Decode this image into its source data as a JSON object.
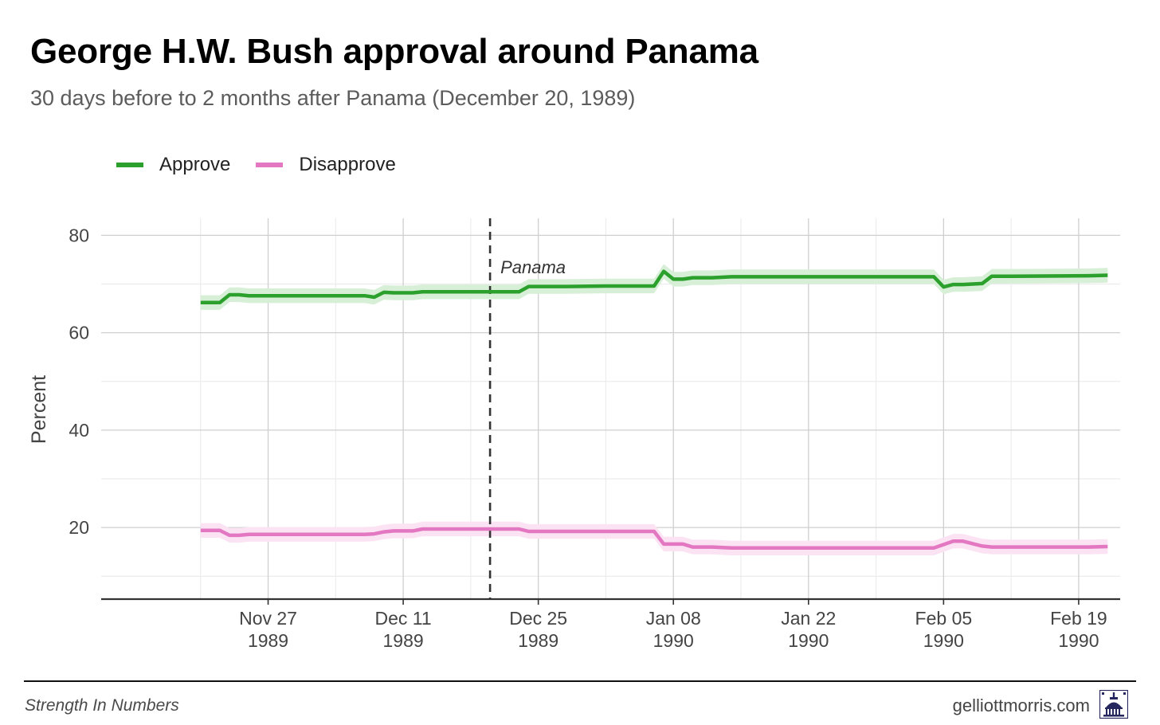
{
  "header": {
    "title": "George H.W. Bush approval around Panama",
    "subtitle": "30 days before to 2 months after Panama (December 20, 1989)"
  },
  "footer": {
    "source": "Strength In Numbers",
    "site": "gelliottmorris.com",
    "logo_icon": "capitol-dome-icon"
  },
  "colors": {
    "approve": "#2ca02c",
    "approve_band": "#d6efd6",
    "disapprove": "#e377c2",
    "disapprove_band": "#fbe3f3",
    "grid_major": "#cfcfcf",
    "grid_minor": "#ececec",
    "axis": "#333333",
    "event_line": "#333333"
  },
  "chart_data": {
    "type": "line",
    "title": "George H.W. Bush approval around Panama",
    "ylabel": "Percent",
    "xlabel": "",
    "ylim": [
      5.3,
      83.5
    ],
    "y_ticks": [
      20,
      40,
      60,
      80
    ],
    "y_minor_ticks": [
      10,
      30,
      50,
      70
    ],
    "x_range_days": [
      -40.3,
      65.3
    ],
    "x_ticks": [
      {
        "day": -23,
        "line1": "Nov 27",
        "line2": "1989"
      },
      {
        "day": -9,
        "line1": "Dec 11",
        "line2": "1989"
      },
      {
        "day": 5,
        "line1": "Dec 25",
        "line2": "1989"
      },
      {
        "day": 19,
        "line1": "Jan 08",
        "line2": "1990"
      },
      {
        "day": 33,
        "line1": "Jan 22",
        "line2": "1990"
      },
      {
        "day": 47,
        "line1": "Feb 05",
        "line2": "1990"
      },
      {
        "day": 61,
        "line1": "Feb 19",
        "line2": "1990"
      }
    ],
    "x_minor_ticks": [
      -30,
      -16,
      -2,
      12,
      26,
      40,
      54
    ],
    "x_units": "days relative to December 20, 1989",
    "event": {
      "day": 0,
      "label": "Panama"
    },
    "band_halfwidth": 1.5,
    "series": [
      {
        "name": "Approve",
        "color": "#2ca02c",
        "x": [
          -30,
          -28,
          -27,
          -26,
          -25,
          -13,
          -12,
          -11,
          -10,
          -8,
          -7,
          -6,
          -2,
          3,
          4,
          5,
          8,
          12,
          15,
          17,
          18,
          19,
          20,
          21,
          23,
          25,
          45,
          46,
          47,
          48,
          49,
          51,
          52,
          54,
          62,
          64
        ],
        "y": [
          66.2,
          66.2,
          67.8,
          67.8,
          67.6,
          67.6,
          67.3,
          68.3,
          68.2,
          68.2,
          68.4,
          68.4,
          68.4,
          68.4,
          69.5,
          69.5,
          69.5,
          69.6,
          69.6,
          69.6,
          72.6,
          71.0,
          71.0,
          71.3,
          71.3,
          71.5,
          71.5,
          71.5,
          69.4,
          69.9,
          69.9,
          70.1,
          71.6,
          71.6,
          71.7,
          71.8
        ]
      },
      {
        "name": "Disapprove",
        "color": "#e377c2",
        "x": [
          -30,
          -28,
          -27,
          -26,
          -25,
          -13,
          -12,
          -11,
          -10,
          -8,
          -7,
          -6,
          -2,
          3,
          4,
          5,
          8,
          12,
          15,
          17,
          18,
          19,
          20,
          21,
          23,
          25,
          45,
          46,
          47,
          48,
          49,
          51,
          52,
          54,
          62,
          64
        ],
        "y": [
          19.4,
          19.4,
          18.4,
          18.4,
          18.6,
          18.6,
          18.7,
          19.1,
          19.3,
          19.3,
          19.7,
          19.7,
          19.7,
          19.7,
          19.2,
          19.2,
          19.2,
          19.2,
          19.2,
          19.2,
          16.6,
          16.6,
          16.6,
          16.0,
          16.0,
          15.8,
          15.8,
          15.8,
          16.5,
          17.2,
          17.2,
          16.2,
          16.0,
          16.0,
          16.0,
          16.1
        ]
      }
    ]
  }
}
